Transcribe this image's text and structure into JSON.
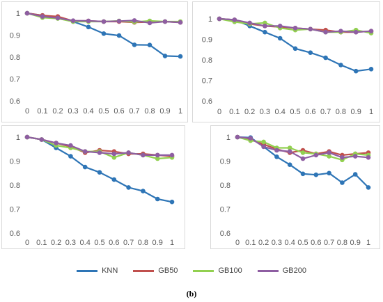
{
  "caption": "(b)",
  "chart_data": [
    {
      "type": "line",
      "x": [
        0,
        0.1,
        0.2,
        0.3,
        0.4,
        0.5,
        0.6,
        0.7,
        0.8,
        0.9,
        1
      ],
      "x_tick_labels": [
        "0",
        "0.1",
        "0.2",
        "0.3",
        "0.4",
        "0.5",
        "0.6",
        "0.7",
        "0.8",
        "0.9",
        "1"
      ],
      "ylim": [
        0.6,
        1.0
      ],
      "y_ticks": [
        "0.6",
        "0.7",
        "0.8",
        "0.9",
        "1"
      ],
      "grid": false,
      "series": [
        {
          "name": "KNN",
          "color": "#2e75b6",
          "values": [
            1.0,
            0.99,
            0.978,
            0.962,
            0.937,
            0.907,
            0.898,
            0.856,
            0.855,
            0.805,
            0.803
          ]
        },
        {
          "name": "GB50",
          "color": "#c0504d",
          "values": [
            1.0,
            0.99,
            0.985,
            0.965,
            0.965,
            0.962,
            0.962,
            0.958,
            0.96,
            0.962,
            0.958
          ]
        },
        {
          "name": "GB100",
          "color": "#92d050",
          "values": [
            1.0,
            0.98,
            0.976,
            0.962,
            0.962,
            0.962,
            0.965,
            0.96,
            0.965,
            0.962,
            0.962
          ]
        },
        {
          "name": "GB200",
          "color": "#8e5ea2",
          "values": [
            1.0,
            0.985,
            0.978,
            0.966,
            0.965,
            0.962,
            0.964,
            0.967,
            0.956,
            0.962,
            0.958
          ]
        }
      ]
    },
    {
      "type": "line",
      "x": [
        0,
        0.1,
        0.2,
        0.3,
        0.4,
        0.5,
        0.6,
        0.7,
        0.8,
        0.9,
        1
      ],
      "x_tick_labels": [
        "0",
        "0.1",
        "0.2",
        "0.3",
        "0.4",
        "0.5",
        "0.6",
        "0.7",
        "0.8",
        "0.9",
        "1"
      ],
      "ylim": [
        0.6,
        1.0
      ],
      "y_ticks": [
        "0.6",
        "0.7",
        "0.8",
        "0.9",
        "1"
      ],
      "grid": false,
      "series": [
        {
          "name": "KNN",
          "color": "#2e75b6",
          "values": [
            1.0,
            0.995,
            0.965,
            0.935,
            0.905,
            0.855,
            0.835,
            0.81,
            0.775,
            0.745,
            0.755
          ]
        },
        {
          "name": "GB50",
          "color": "#c0504d",
          "values": [
            1.0,
            0.995,
            0.975,
            0.965,
            0.96,
            0.955,
            0.95,
            0.945,
            0.935,
            0.935,
            0.94
          ]
        },
        {
          "name": "GB100",
          "color": "#92d050",
          "values": [
            1.0,
            0.985,
            0.975,
            0.98,
            0.955,
            0.945,
            0.95,
            0.935,
            0.935,
            0.945,
            0.93
          ]
        },
        {
          "name": "GB200",
          "color": "#8e5ea2",
          "values": [
            1.0,
            0.995,
            0.98,
            0.965,
            0.965,
            0.955,
            0.95,
            0.935,
            0.94,
            0.935,
            0.94
          ]
        }
      ]
    },
    {
      "type": "line",
      "x": [
        0,
        0.1,
        0.2,
        0.3,
        0.4,
        0.5,
        0.6,
        0.7,
        0.8,
        0.9,
        1
      ],
      "x_tick_labels": [
        "0",
        "0.1",
        "0.2",
        "0.3",
        "0.4",
        "0.5",
        "0.6",
        "0.7",
        "0.8",
        "0.9",
        "1"
      ],
      "ylim": [
        0.6,
        1.0
      ],
      "y_ticks": [
        "0.6",
        "0.7",
        "0.8",
        "0.9",
        "1"
      ],
      "grid": false,
      "series": [
        {
          "name": "KNN",
          "color": "#2e75b6",
          "values": [
            1.0,
            0.99,
            0.955,
            0.92,
            0.875,
            0.853,
            0.823,
            0.79,
            0.775,
            0.742,
            0.73
          ]
        },
        {
          "name": "GB50",
          "color": "#c0504d",
          "values": [
            1.0,
            0.99,
            0.975,
            0.96,
            0.935,
            0.945,
            0.94,
            0.93,
            0.93,
            0.925,
            0.92
          ]
        },
        {
          "name": "GB100",
          "color": "#92d050",
          "values": [
            1.0,
            0.99,
            0.965,
            0.955,
            0.94,
            0.94,
            0.915,
            0.935,
            0.925,
            0.91,
            0.915
          ]
        },
        {
          "name": "GB200",
          "color": "#8e5ea2",
          "values": [
            1.0,
            0.99,
            0.975,
            0.965,
            0.94,
            0.935,
            0.93,
            0.935,
            0.925,
            0.925,
            0.925
          ]
        }
      ]
    },
    {
      "type": "line",
      "x": [
        0,
        0.1,
        0.2,
        0.3,
        0.4,
        0.5,
        0.6,
        0.7,
        0.8,
        0.9,
        1
      ],
      "x_tick_labels": [
        "0",
        "0.1",
        "0.2",
        "0.3",
        "0.4",
        "0.5",
        "0.6",
        "0.7",
        "0.8",
        "0.9",
        "1"
      ],
      "ylim": [
        0.6,
        1.0
      ],
      "y_ticks": [
        "0.6",
        "0.7",
        "0.8",
        "0.9",
        "1"
      ],
      "grid": false,
      "series": [
        {
          "name": "KNN",
          "color": "#2e75b6",
          "values": [
            1.0,
            0.998,
            0.96,
            0.918,
            0.885,
            0.847,
            0.843,
            0.85,
            0.81,
            0.845,
            0.79
          ]
        },
        {
          "name": "GB50",
          "color": "#c0504d",
          "values": [
            1.0,
            0.99,
            0.97,
            0.95,
            0.935,
            0.945,
            0.93,
            0.94,
            0.925,
            0.93,
            0.935
          ]
        },
        {
          "name": "GB100",
          "color": "#92d050",
          "values": [
            1.0,
            0.985,
            0.98,
            0.955,
            0.955,
            0.935,
            0.93,
            0.92,
            0.905,
            0.93,
            0.925
          ]
        },
        {
          "name": "GB200",
          "color": "#8e5ea2",
          "values": [
            1.0,
            0.995,
            0.96,
            0.945,
            0.94,
            0.91,
            0.925,
            0.935,
            0.915,
            0.92,
            0.915
          ]
        }
      ]
    }
  ],
  "legend": [
    {
      "label": "KNN",
      "color": "#2e75b6"
    },
    {
      "label": "GB50",
      "color": "#c0504d"
    },
    {
      "label": "GB100",
      "color": "#92d050"
    },
    {
      "label": "GB200",
      "color": "#8e5ea2"
    }
  ]
}
